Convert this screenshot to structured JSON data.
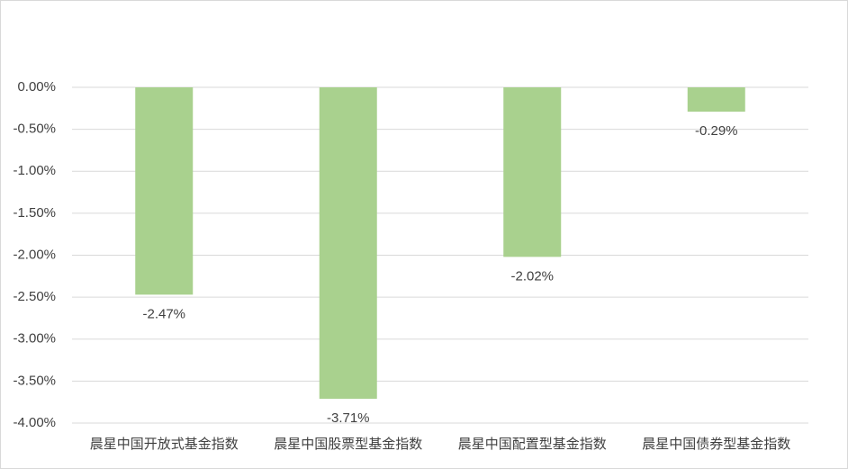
{
  "chart_data": {
    "type": "bar",
    "categories": [
      "晨星中国开放式基金指数",
      "晨星中国股票型基金指数",
      "晨星中国配置型基金指数",
      "晨星中国债券型基金指数"
    ],
    "values": [
      -2.47,
      -3.71,
      -2.02,
      -0.29
    ],
    "value_labels": [
      "-2.47%",
      "-3.71%",
      "-2.02%",
      "-0.29%"
    ],
    "color": "#a9d18e",
    "ylim": [
      -4,
      0
    ],
    "yticks": [
      {
        "value": 0,
        "label": "0.00%"
      },
      {
        "value": -0.5,
        "label": "-0.50%"
      },
      {
        "value": -1,
        "label": "-1.00%"
      },
      {
        "value": -1.5,
        "label": "-1.50%"
      },
      {
        "value": -2,
        "label": "-2.00%"
      },
      {
        "value": -2.5,
        "label": "-2.50%"
      },
      {
        "value": -3,
        "label": "-3.00%"
      },
      {
        "value": -3.5,
        "label": "-3.50%"
      },
      {
        "value": -4,
        "label": "-4.00%"
      }
    ],
    "grid": true
  }
}
